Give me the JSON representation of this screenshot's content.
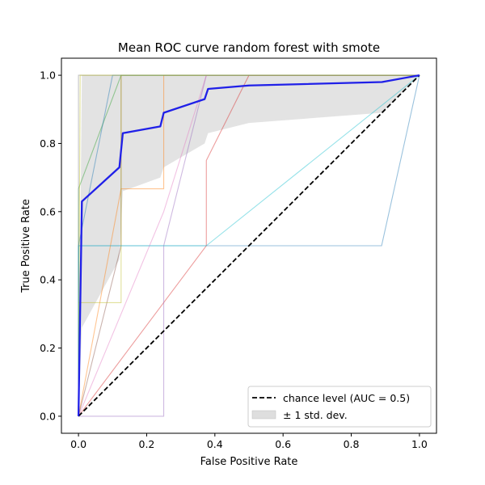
{
  "chart_data": {
    "type": "line",
    "title": "Mean ROC curve random forest with smote",
    "xlabel": "False Positive Rate",
    "ylabel": "True Positive Rate",
    "xlim": [
      -0.05,
      1.05
    ],
    "ylim": [
      -0.05,
      1.05
    ],
    "xticks": [
      "0.0",
      "0.2",
      "0.4",
      "0.6",
      "0.8",
      "1.0"
    ],
    "yticks": [
      "0.0",
      "0.2",
      "0.4",
      "0.6",
      "0.8",
      "1.0"
    ],
    "grid": false,
    "legend_position": "lower-right",
    "legend": [
      "chance level (AUC = 0.5)",
      "± 1 std. dev."
    ],
    "fold_curves": [
      {
        "color": "#1f77b4",
        "points": [
          [
            0,
            0
          ],
          [
            0,
            0.5
          ],
          [
            0.889,
            0.5
          ],
          [
            1,
            1
          ]
        ]
      },
      {
        "color": "#ff7f0e",
        "points": [
          [
            0,
            0
          ],
          [
            0.125,
            0.667
          ],
          [
            0.25,
            0.667
          ],
          [
            0.25,
            1
          ],
          [
            1,
            1
          ]
        ]
      },
      {
        "color": "#2ca02c",
        "points": [
          [
            0,
            0
          ],
          [
            0,
            0.667
          ],
          [
            0.125,
            1
          ],
          [
            1,
            1
          ]
        ]
      },
      {
        "color": "#d62728",
        "points": [
          [
            0,
            0
          ],
          [
            0.375,
            0.5
          ],
          [
            0.375,
            0.75
          ],
          [
            0.5,
            1
          ],
          [
            1,
            1
          ]
        ]
      },
      {
        "color": "#9467bd",
        "points": [
          [
            0,
            0
          ],
          [
            0.25,
            0
          ],
          [
            0.25,
            0.5
          ],
          [
            0.375,
            1
          ],
          [
            1,
            1
          ]
        ]
      },
      {
        "color": "#8c564b",
        "points": [
          [
            0,
            0
          ],
          [
            0.125,
            0.5
          ],
          [
            0.125,
            1
          ],
          [
            1,
            1
          ]
        ]
      },
      {
        "color": "#e377c2",
        "points": [
          [
            0,
            0
          ],
          [
            0.25,
            0.6
          ],
          [
            0.375,
            1
          ],
          [
            1,
            1
          ]
        ]
      },
      {
        "color": "#7f7f7f",
        "points": [
          [
            0,
            0
          ],
          [
            0,
            1
          ],
          [
            1,
            1
          ]
        ]
      },
      {
        "color": "#bcbd22",
        "points": [
          [
            0,
            0
          ],
          [
            0,
            0.333
          ],
          [
            0.125,
            0.333
          ],
          [
            0.125,
            1
          ],
          [
            1,
            1
          ]
        ]
      },
      {
        "color": "#17becf",
        "points": [
          [
            0,
            0
          ],
          [
            0,
            0.5
          ],
          [
            0.375,
            0.5
          ],
          [
            1,
            1
          ]
        ]
      },
      {
        "color": "#1f77b4",
        "points": [
          [
            0,
            0
          ],
          [
            0,
            0.5
          ],
          [
            0.1,
            1
          ],
          [
            1,
            1
          ]
        ]
      },
      {
        "color": "#bcbd22",
        "points": [
          [
            0,
            0
          ],
          [
            0.005,
            1
          ],
          [
            1,
            1
          ]
        ]
      }
    ],
    "mean_curve": {
      "color": "#2020e8",
      "points": [
        [
          0,
          0
        ],
        [
          0.01,
          0.63
        ],
        [
          0.12,
          0.73
        ],
        [
          0.13,
          0.83
        ],
        [
          0.24,
          0.85
        ],
        [
          0.25,
          0.89
        ],
        [
          0.37,
          0.93
        ],
        [
          0.38,
          0.96
        ],
        [
          0.5,
          0.97
        ],
        [
          0.89,
          0.98
        ],
        [
          1,
          1
        ]
      ]
    },
    "std_band": {
      "color": "#c8c8c8",
      "x": [
        0,
        0.01,
        0.12,
        0.13,
        0.24,
        0.25,
        0.37,
        0.38,
        0.5,
        0.89,
        1
      ],
      "upper": [
        0,
        1,
        1,
        1,
        1,
        1,
        1,
        1,
        1,
        1,
        1
      ],
      "lower": [
        0,
        0.26,
        0.46,
        0.66,
        0.7,
        0.73,
        0.8,
        0.83,
        0.86,
        0.89,
        1
      ]
    },
    "chance_line": {
      "points": [
        [
          0,
          0
        ],
        [
          1,
          1
        ]
      ],
      "color": "#000000",
      "style": "dashed"
    }
  }
}
